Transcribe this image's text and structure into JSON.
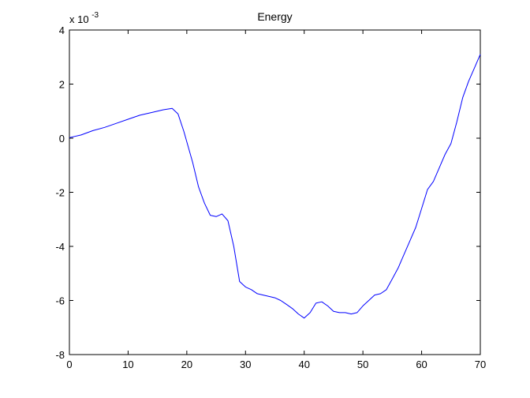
{
  "chart_data": {
    "type": "line",
    "title": "Energy",
    "xlabel": "",
    "ylabel": "",
    "xlim": [
      0,
      70
    ],
    "ylim": [
      -8,
      4
    ],
    "x_ticks": [
      0,
      10,
      20,
      30,
      40,
      50,
      60,
      70
    ],
    "y_ticks": [
      -8,
      -6,
      -4,
      -2,
      0,
      2,
      4
    ],
    "y_multiplier_base": "x 10",
    "y_multiplier_exp": "-3",
    "grid": false,
    "colors": {
      "line": "#0000ff",
      "axes": "#000000",
      "background": "#ffffff"
    },
    "series": [
      {
        "x": [
          0,
          2,
          4,
          6,
          8,
          10,
          12,
          14,
          16,
          17.5,
          18.5,
          19.5,
          21,
          22,
          23,
          24,
          25,
          26,
          27,
          28,
          29,
          30,
          31,
          32,
          33,
          34,
          35,
          36,
          37,
          38,
          39,
          40,
          41,
          42,
          43,
          44,
          45,
          46,
          47,
          48,
          49,
          50,
          51,
          52,
          53,
          54,
          55,
          56,
          57,
          58,
          59,
          60,
          61,
          62,
          63,
          64,
          65,
          66,
          67,
          68,
          69,
          70
        ],
        "y": [
          0.02,
          0.12,
          0.28,
          0.4,
          0.55,
          0.7,
          0.85,
          0.95,
          1.05,
          1.1,
          0.9,
          0.25,
          -0.9,
          -1.8,
          -2.4,
          -2.85,
          -2.9,
          -2.8,
          -3.05,
          -4.0,
          -5.3,
          -5.5,
          -5.6,
          -5.75,
          -5.8,
          -5.85,
          -5.9,
          -6.0,
          -6.15,
          -6.3,
          -6.5,
          -6.65,
          -6.45,
          -6.1,
          -6.05,
          -6.2,
          -6.4,
          -6.45,
          -6.45,
          -6.5,
          -6.45,
          -6.2,
          -6.0,
          -5.8,
          -5.75,
          -5.6,
          -5.2,
          -4.8,
          -4.3,
          -3.8,
          -3.3,
          -2.6,
          -1.9,
          -1.6,
          -1.1,
          -0.6,
          -0.2,
          0.6,
          1.5,
          2.1,
          2.6,
          3.1
        ]
      }
    ]
  }
}
